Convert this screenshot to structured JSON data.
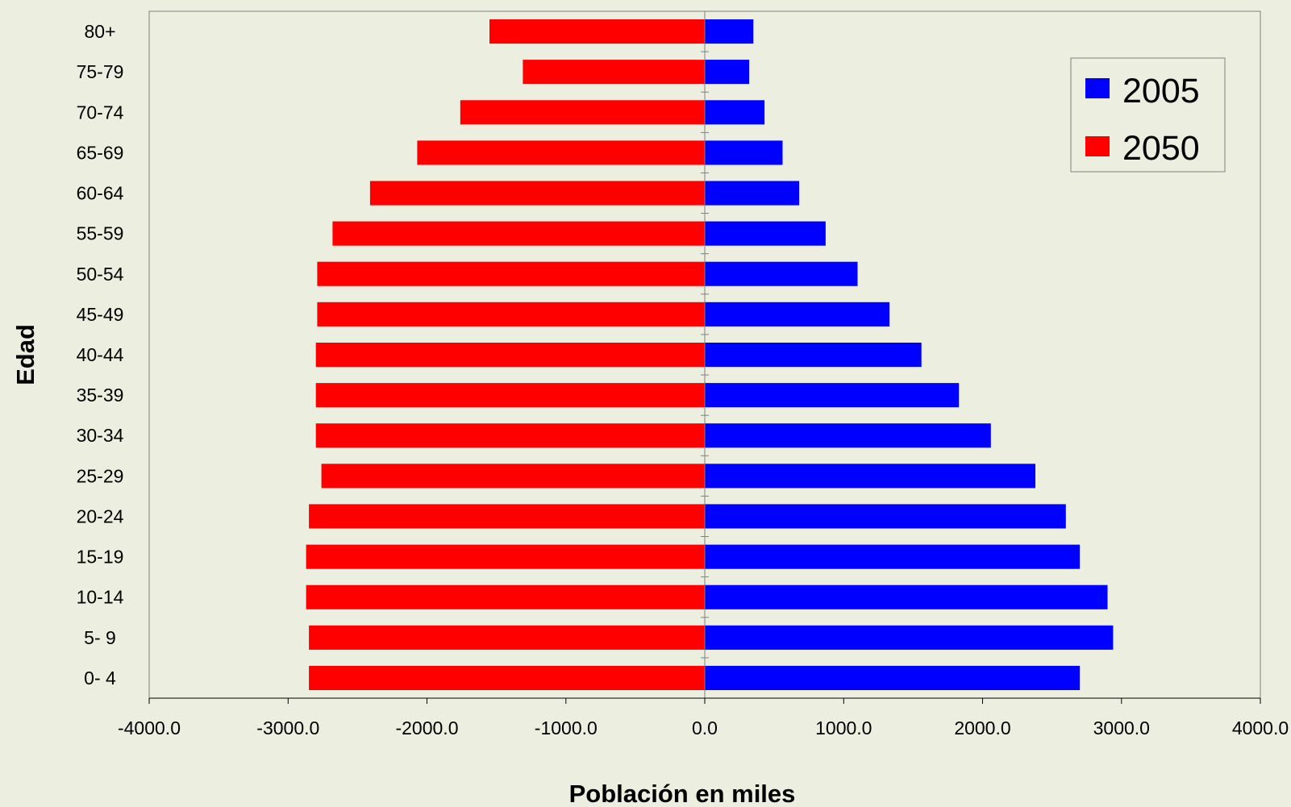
{
  "chart_data": {
    "type": "bar",
    "orientation": "horizontal",
    "title": "",
    "xlabel": "Población en miles",
    "ylabel": "Edad",
    "xlim": [
      -4000,
      4000
    ],
    "xticks": [
      "-4000.0",
      "-3000.0",
      "-2000.0",
      "-1000.0",
      "0.0",
      "1000.0",
      "2000.0",
      "3000.0",
      "4000.0"
    ],
    "categories": [
      "0- 4",
      "5- 9",
      "10-14",
      "15-19",
      "20-24",
      "25-29",
      "30-34",
      "35-39",
      "40-44",
      "45-49",
      "50-54",
      "55-59",
      "60-64",
      "65-69",
      "70-74",
      "75-79",
      "80+"
    ],
    "series": [
      {
        "name": "2005",
        "color": "#0000FF",
        "values": [
          2700,
          2940,
          2900,
          2700,
          2600,
          2380,
          2060,
          1830,
          1560,
          1330,
          1100,
          870,
          680,
          560,
          430,
          320,
          350
        ]
      },
      {
        "name": "2050",
        "color": "#FF0000",
        "values": [
          -2850,
          -2850,
          -2870,
          -2870,
          -2850,
          -2760,
          -2800,
          -2800,
          -2800,
          -2790,
          -2790,
          -2680,
          -2410,
          -2070,
          -1760,
          -1310,
          -1550
        ]
      }
    ],
    "grid": false,
    "legend_position": "top-right"
  }
}
